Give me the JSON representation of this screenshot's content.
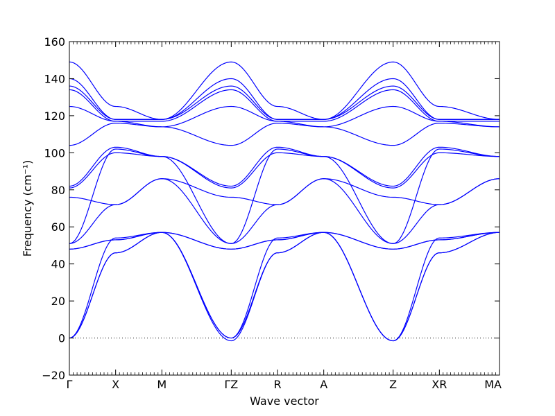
{
  "chart_data": {
    "type": "line",
    "title": "",
    "xlabel": "Wave vector",
    "ylabel": "Frequency (cm⁻¹)",
    "ylim": [
      -20,
      160
    ],
    "yticks": [
      -20,
      0,
      20,
      40,
      60,
      80,
      100,
      120,
      140,
      160
    ],
    "grid": false,
    "zero_line": {
      "y": 0,
      "style": "dotted"
    },
    "x_range": [
      0,
      9.3
    ],
    "high_symmetry_points": [
      {
        "label": "Γ",
        "x": 0.0
      },
      {
        "label": "X",
        "x": 1.0
      },
      {
        "label": "M",
        "x": 2.0
      },
      {
        "label": "ΓZ",
        "x": 3.5
      },
      {
        "label": "R",
        "x": 4.5
      },
      {
        "label": "A",
        "x": 5.5
      },
      {
        "label": "Z",
        "x": 7.0
      },
      {
        "label": "XR",
        "x": 8.0
      },
      {
        "label": "MA",
        "x": 9.3
      }
    ],
    "series": [
      {
        "x": [
          0.0,
          1.0,
          2.0,
          3.5,
          4.5,
          5.5,
          7.0,
          8.0,
          9.3
        ],
        "values": [
          0,
          54,
          57,
          0,
          54,
          57,
          -1.5,
          54,
          57
        ]
      },
      {
        "x": [
          0.0,
          1.0,
          2.0,
          3.5,
          4.5,
          5.5,
          7.0,
          8.0,
          9.3
        ],
        "values": [
          0,
          46,
          57,
          0,
          46,
          57,
          -1.5,
          46,
          57
        ]
      },
      {
        "x": [
          0.0,
          1.0,
          2.0,
          3.5,
          4.5,
          5.5,
          7.0,
          8.0,
          9.3
        ],
        "values": [
          0,
          46,
          57,
          -1.5,
          46,
          57,
          -1.5,
          46,
          57
        ]
      },
      {
        "x": [
          0.0,
          1.0,
          2.0,
          3.5,
          4.5,
          5.5,
          7.0,
          8.0,
          9.3
        ],
        "values": [
          48,
          53,
          57,
          48,
          53,
          57,
          48,
          53,
          57
        ]
      },
      {
        "x": [
          0.0,
          1.0,
          2.0,
          3.5,
          4.5,
          5.5,
          7.0,
          8.0,
          9.3
        ],
        "values": [
          48,
          53,
          57,
          48,
          53,
          57,
          48,
          53,
          57
        ]
      },
      {
        "x": [
          0.0,
          1.0,
          2.0,
          3.5,
          4.5,
          5.5,
          7.0,
          8.0,
          9.3
        ],
        "values": [
          51,
          72,
          86,
          51,
          72,
          86,
          51,
          72,
          86
        ]
      },
      {
        "x": [
          0.0,
          1.0,
          2.0,
          3.5,
          4.5,
          5.5,
          7.0,
          8.0,
          9.3
        ],
        "values": [
          51,
          102,
          98,
          51,
          102,
          98,
          51,
          102,
          98
        ]
      },
      {
        "x": [
          0.0,
          1.0,
          2.0,
          3.5,
          4.5,
          5.5,
          7.0,
          8.0,
          9.3
        ],
        "values": [
          76,
          72,
          86,
          76,
          72,
          86,
          76,
          72,
          86
        ]
      },
      {
        "x": [
          0.0,
          1.0,
          2.0,
          3.5,
          4.5,
          5.5,
          7.0,
          8.0,
          9.3
        ],
        "values": [
          81,
          100,
          98,
          81,
          100,
          98,
          81,
          100,
          98
        ]
      },
      {
        "x": [
          0.0,
          1.0,
          2.0,
          3.5,
          4.5,
          5.5,
          7.0,
          8.0,
          9.3
        ],
        "values": [
          82,
          103,
          98,
          82,
          103,
          98,
          82,
          103,
          98
        ]
      },
      {
        "x": [
          0.0,
          1.0,
          2.0,
          3.5,
          4.5,
          5.5,
          7.0,
          8.0,
          9.3
        ],
        "values": [
          104,
          116,
          114,
          104,
          116,
          114,
          104,
          116,
          114
        ]
      },
      {
        "x": [
          0.0,
          1.0,
          2.0,
          3.5,
          4.5,
          5.5,
          7.0,
          8.0,
          9.3
        ],
        "values": [
          125,
          117,
          114,
          125,
          117,
          114,
          125,
          117,
          114
        ]
      },
      {
        "x": [
          0.0,
          1.0,
          2.0,
          3.5,
          4.5,
          5.5,
          7.0,
          8.0,
          9.3
        ],
        "values": [
          134,
          117,
          117,
          134,
          117,
          117,
          134,
          117,
          117
        ]
      },
      {
        "x": [
          0.0,
          1.0,
          2.0,
          3.5,
          4.5,
          5.5,
          7.0,
          8.0,
          9.3
        ],
        "values": [
          136,
          118,
          118,
          136,
          118,
          118,
          136,
          118,
          118
        ]
      },
      {
        "x": [
          0.0,
          1.0,
          2.0,
          3.5,
          4.5,
          5.5,
          7.0,
          8.0,
          9.3
        ],
        "values": [
          140,
          118,
          118,
          140,
          118,
          118,
          140,
          118,
          118
        ]
      },
      {
        "x": [
          0.0,
          1.0,
          2.0,
          3.5,
          4.5,
          5.5,
          7.0,
          8.0,
          9.3
        ],
        "values": [
          149,
          125,
          118,
          149,
          125,
          118,
          149,
          125,
          118
        ]
      }
    ]
  }
}
